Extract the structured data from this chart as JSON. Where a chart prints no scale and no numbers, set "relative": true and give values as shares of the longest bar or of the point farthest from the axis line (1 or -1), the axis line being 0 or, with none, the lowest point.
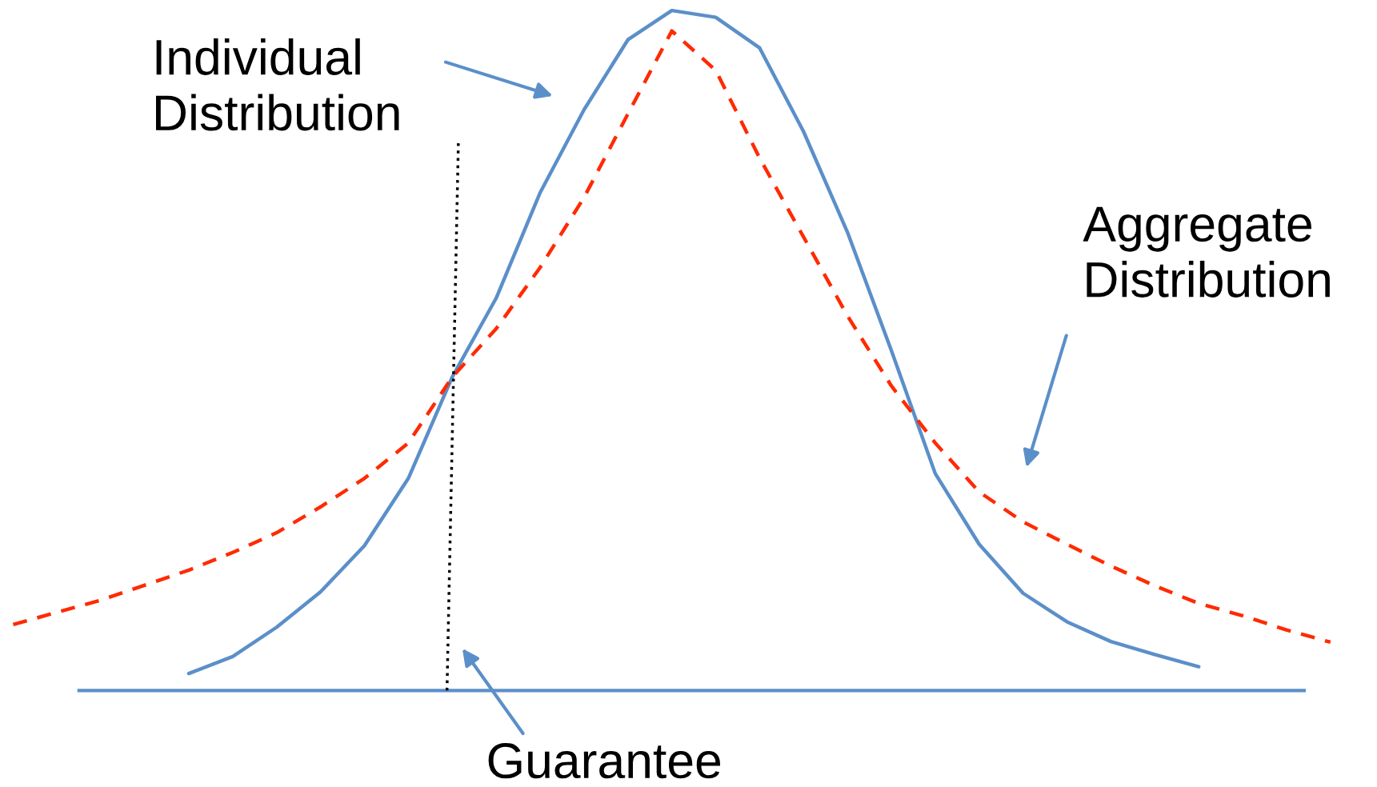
{
  "chart_data": {
    "type": "line",
    "relative": true,
    "categories": [
      null,
      null,
      null,
      null,
      null,
      null,
      null,
      null,
      null,
      null,
      null,
      null,
      null,
      null,
      null,
      null,
      null,
      null,
      null,
      null,
      null,
      null,
      null,
      null,
      null,
      null,
      null,
      null,
      null,
      null,
      null
    ],
    "series": [
      {
        "color": "#5b8fc9",
        "line_style": "solid",
        "values": [
          null,
          null,
          null,
          null,
          0.025,
          0.05,
          0.093,
          0.145,
          0.213,
          0.312,
          0.461,
          0.577,
          0.732,
          0.854,
          0.957,
          1.0,
          0.99,
          0.945,
          0.822,
          0.674,
          0.5,
          0.319,
          0.215,
          0.143,
          0.101,
          0.072,
          0.053,
          0.035,
          null,
          null,
          null
        ]
      },
      {
        "color": "#ff2a00",
        "line_style": "dashed",
        "values": [
          0.097,
          0.115,
          0.133,
          0.155,
          0.177,
          0.203,
          0.232,
          0.27,
          0.312,
          0.364,
          0.461,
          0.532,
          0.622,
          0.725,
          0.848,
          0.97,
          0.912,
          0.783,
          0.667,
          0.551,
          0.448,
          0.364,
          0.292,
          0.248,
          0.215,
          0.183,
          0.154,
          0.128,
          0.11,
          0.089,
          0.071
        ]
      }
    ],
    "annotations": [
      "Individual Distribution",
      "Aggregate Distribution",
      "Guarantee"
    ],
    "grid": false,
    "legend": false
  }
}
